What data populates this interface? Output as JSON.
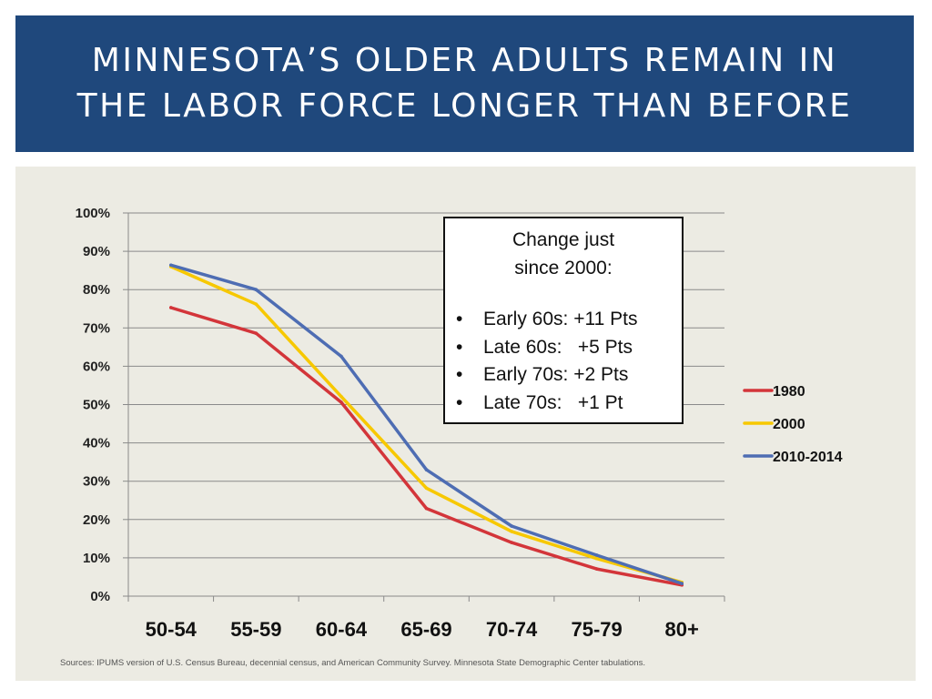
{
  "title": {
    "line1": "MINNESOTA’S OLDER ADULTS REMAIN IN",
    "line2": "THE LABOR FORCE LONGER THAN BEFORE"
  },
  "chart_data": {
    "type": "line",
    "title": "MINNESOTA’S OLDER ADULTS REMAIN IN THE LABOR FORCE LONGER THAN BEFORE",
    "xlabel": "",
    "ylabel": "",
    "categories": [
      "50-54",
      "55-59",
      "60-64",
      "65-69",
      "70-74",
      "75-79",
      "80+"
    ],
    "ylim": [
      0,
      100
    ],
    "yticks": [
      "0%",
      "10%",
      "20%",
      "30%",
      "40%",
      "50%",
      "60%",
      "70%",
      "80%",
      "90%",
      "100%"
    ],
    "grid": true,
    "legend_position": "right",
    "series": [
      {
        "name": "1980",
        "color": "#d3353a",
        "values": [
          75.3,
          68.6,
          50.6,
          22.9,
          14.0,
          7.1,
          2.9
        ]
      },
      {
        "name": "2000",
        "color": "#f7c800",
        "values": [
          86.0,
          76.2,
          52.1,
          28.2,
          16.9,
          9.8,
          3.6
        ]
      },
      {
        "name": "2010-2014",
        "color": "#4e6db3",
        "values": [
          86.4,
          80.0,
          62.6,
          33.0,
          18.3,
          10.7,
          3.3
        ]
      }
    ]
  },
  "annotation": {
    "title_line1": "Change just",
    "title_line2": "since 2000:",
    "items": [
      "Early 60s: +11 Pts",
      "Late 60s:   +5 Pts",
      "Early 70s: +2 Pts",
      "Late 70s:   +1 Pt"
    ]
  },
  "source": "Sources: IPUMS version of U.S. Census Bureau, decennial census, and American Community Survey. Minnesota State Demographic Center tabulations."
}
